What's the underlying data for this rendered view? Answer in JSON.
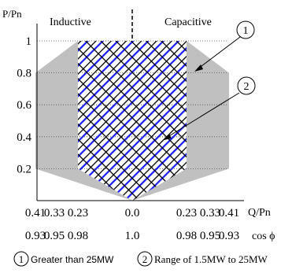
{
  "chart_data": {
    "type": "pq-capability-diagram",
    "y_axis_label": "P/Pn",
    "y_ticks": [
      "1",
      "0.8",
      "0.6",
      "0.4",
      "0.2"
    ],
    "x_axis_label": "Q/Pn",
    "x_ticks_q": [
      "0.41",
      "0.33",
      "0.23",
      "0.0",
      "0.23",
      "0.33",
      "0.41"
    ],
    "cos_phi_label": "cos ϕ",
    "x_ticks_cosphi": [
      "0.93",
      "0.95",
      "0.98",
      "1.0",
      "0.98",
      "0.95",
      "0.93"
    ],
    "region_left_label": "Inductive",
    "region_right_label": "Capacitive",
    "outer_region": {
      "id": "1",
      "description": "Greater than 25MW",
      "fill_color": "#c0c0c0",
      "polygon_q_p": [
        [
          -0.23,
          1.0
        ],
        [
          0.23,
          1.0
        ],
        [
          0.41,
          0.8
        ],
        [
          0.41,
          0.2
        ],
        [
          0.0,
          0.0
        ],
        [
          -0.41,
          0.2
        ],
        [
          -0.41,
          0.8
        ]
      ]
    },
    "inner_region": {
      "id": "2",
      "description": "Range of 1.5MW to 25MW",
      "pattern_colors": [
        "#000000",
        "#1a1aff"
      ],
      "polygon_q_p": [
        [
          -0.23,
          1.0
        ],
        [
          0.23,
          1.0
        ],
        [
          0.23,
          0.2
        ],
        [
          0.0,
          0.0
        ],
        [
          -0.23,
          0.2
        ]
      ]
    },
    "callouts": [
      {
        "id": "1",
        "points_to": "outer_region"
      },
      {
        "id": "2",
        "points_to": "inner_region"
      }
    ]
  }
}
